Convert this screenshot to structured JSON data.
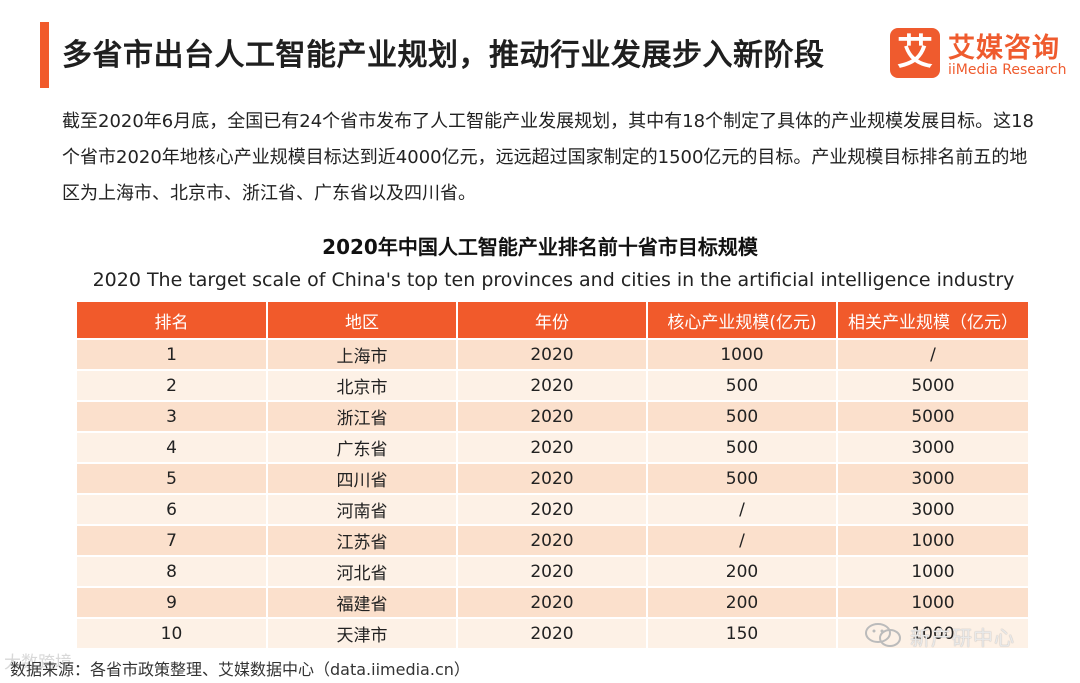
{
  "header": {
    "title": "多省市出台人工智能产业规划，推动行业发展步入新阶段"
  },
  "logo": {
    "mark": "艾",
    "name_cn": "艾媒咨询",
    "name_en": "iiMedia Research"
  },
  "intro": {
    "text": "截至2020年6月底，全国已有24个省市发布了人工智能产业发展规划，其中有18个制定了具体的产业规模发展目标。这18个省市2020年地核心产业规模目标达到近4000亿元，远远超过国家制定的1500亿元的目标。产业规模目标排名前五的地区为上海市、北京市、浙江省、广东省以及四川省。"
  },
  "table": {
    "title": "2020年中国人工智能产业排名前十省市目标规模",
    "subtitle": "2020 The target scale of China's top ten provinces and cities in the artificial intelligence industry",
    "columns": [
      "排名",
      "地区",
      "年份",
      "核心产业规模(亿元)",
      "相关产业规模（亿元）"
    ],
    "rows": [
      [
        "1",
        "上海市",
        "2020",
        "1000",
        "/"
      ],
      [
        "2",
        "北京市",
        "2020",
        "500",
        "5000"
      ],
      [
        "3",
        "浙江省",
        "2020",
        "500",
        "5000"
      ],
      [
        "4",
        "广东省",
        "2020",
        "500",
        "3000"
      ],
      [
        "5",
        "四川省",
        "2020",
        "500",
        "3000"
      ],
      [
        "6",
        "河南省",
        "2020",
        "/",
        "3000"
      ],
      [
        "7",
        "江苏省",
        "2020",
        "/",
        "1000"
      ],
      [
        "8",
        "河北省",
        "2020",
        "200",
        "1000"
      ],
      [
        "9",
        "福建省",
        "2020",
        "200",
        "1000"
      ],
      [
        "10",
        "天津市",
        "2020",
        "150",
        "1000"
      ]
    ]
  },
  "footer": {
    "source": "数据来源：各省市政策整理、艾媒数据中心（data.iimedia.cn）",
    "watermark_left": "大数跨境",
    "wechat_account": "新产研中心"
  },
  "colors": {
    "accent": "#f15a2b",
    "row_odd": "#fbe0cc",
    "row_even": "#fdf1e6"
  }
}
